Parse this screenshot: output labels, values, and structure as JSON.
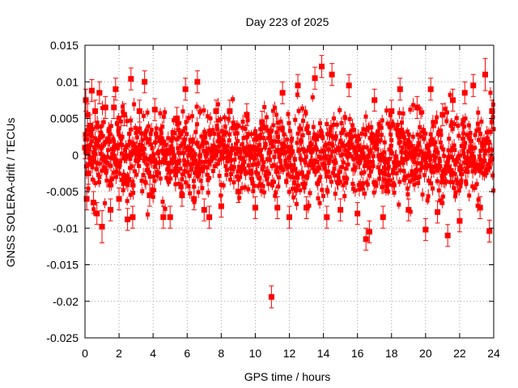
{
  "chart_data": {
    "type": "scatter",
    "title": "Day 223 of 2025",
    "xlabel": "GPS time / hours",
    "ylabel": "GNSS SOLERA-drift / TECUs",
    "xlim": [
      0,
      24
    ],
    "ylim": [
      -0.025,
      0.015
    ],
    "x_ticks": [
      0,
      2,
      4,
      6,
      8,
      10,
      12,
      14,
      16,
      18,
      20,
      22,
      24
    ],
    "x_tick_labels": [
      "0",
      "2",
      "4",
      "6",
      "8",
      "10",
      "12",
      "14",
      "16",
      "18",
      "20",
      "22",
      "24"
    ],
    "y_ticks": [
      -0.025,
      -0.02,
      -0.015,
      -0.01,
      -0.005,
      0,
      0.005,
      0.01,
      0.015
    ],
    "y_tick_labels": [
      "-0.025",
      "-0.02",
      "-0.015",
      "-0.01",
      "-0.005",
      "0",
      "0.005",
      "0.01",
      "0.015"
    ],
    "grid": true,
    "marker_color": "#ff0000",
    "error_bars": true,
    "series": [
      {
        "points": [
          {
            "x": 0.0,
            "y": 0.001,
            "err": 0.0015
          },
          {
            "x": 0.05,
            "y": 0.0075,
            "err": 0.0015
          },
          {
            "x": 0.1,
            "y": -0.006,
            "err": 0.0015
          },
          {
            "x": 0.15,
            "y": 0.0055,
            "err": 0.0015
          },
          {
            "x": 0.2,
            "y": -0.0025,
            "err": 0.0015
          },
          {
            "x": 0.3,
            "y": 0.004,
            "err": 0.0015
          },
          {
            "x": 0.4,
            "y": 0.0088,
            "err": 0.0015
          },
          {
            "x": 0.5,
            "y": -0.0065,
            "err": 0.0015
          },
          {
            "x": 0.6,
            "y": 0.006,
            "err": 0.0015
          },
          {
            "x": 0.7,
            "y": -0.008,
            "err": 0.0015
          },
          {
            "x": 0.85,
            "y": 0.0085,
            "err": 0.0015
          },
          {
            "x": 1.0,
            "y": -0.0098,
            "err": 0.0022
          },
          {
            "x": 1.2,
            "y": 0.0065,
            "err": 0.0015
          },
          {
            "x": 1.5,
            "y": -0.0075,
            "err": 0.0015
          },
          {
            "x": 1.7,
            "y": 0.0065,
            "err": 0.0015
          },
          {
            "x": 1.8,
            "y": 0.009,
            "err": 0.0015
          },
          {
            "x": 2.0,
            "y": -0.006,
            "err": 0.0015
          },
          {
            "x": 2.3,
            "y": 0.0055,
            "err": 0.0015
          },
          {
            "x": 2.5,
            "y": -0.0088,
            "err": 0.0015
          },
          {
            "x": 2.7,
            "y": 0.0104,
            "err": 0.0015
          },
          {
            "x": 2.8,
            "y": -0.0085,
            "err": 0.0015
          },
          {
            "x": 3.2,
            "y": 0.006,
            "err": 0.0015
          },
          {
            "x": 3.5,
            "y": 0.01,
            "err": 0.0015
          },
          {
            "x": 3.8,
            "y": -0.0055,
            "err": 0.0015
          },
          {
            "x": 4.1,
            "y": 0.0062,
            "err": 0.0015
          },
          {
            "x": 4.6,
            "y": -0.0085,
            "err": 0.0015
          },
          {
            "x": 5.0,
            "y": -0.0085,
            "err": 0.0015
          },
          {
            "x": 5.4,
            "y": 0.005,
            "err": 0.0015
          },
          {
            "x": 5.7,
            "y": -0.0055,
            "err": 0.0015
          },
          {
            "x": 5.9,
            "y": 0.009,
            "err": 0.0015
          },
          {
            "x": 6.4,
            "y": -0.006,
            "err": 0.0015
          },
          {
            "x": 6.6,
            "y": 0.01,
            "err": 0.0015
          },
          {
            "x": 7.0,
            "y": -0.0075,
            "err": 0.0015
          },
          {
            "x": 7.3,
            "y": -0.0085,
            "err": 0.0015
          },
          {
            "x": 7.7,
            "y": 0.006,
            "err": 0.0015
          },
          {
            "x": 8.0,
            "y": -0.007,
            "err": 0.0015
          },
          {
            "x": 8.5,
            "y": 0.006,
            "err": 0.0015
          },
          {
            "x": 9.0,
            "y": -0.005,
            "err": 0.0015
          },
          {
            "x": 9.5,
            "y": 0.0055,
            "err": 0.0015
          },
          {
            "x": 10.0,
            "y": -0.0072,
            "err": 0.0015
          },
          {
            "x": 10.4,
            "y": 0.0045,
            "err": 0.0015
          },
          {
            "x": 10.95,
            "y": -0.0194,
            "err": 0.0015
          },
          {
            "x": 11.3,
            "y": -0.0072,
            "err": 0.0015
          },
          {
            "x": 11.6,
            "y": 0.0085,
            "err": 0.0015
          },
          {
            "x": 12.0,
            "y": -0.0085,
            "err": 0.0015
          },
          {
            "x": 12.5,
            "y": 0.0095,
            "err": 0.0015
          },
          {
            "x": 13.0,
            "y": -0.0072,
            "err": 0.0015
          },
          {
            "x": 13.5,
            "y": 0.0105,
            "err": 0.0015
          },
          {
            "x": 13.9,
            "y": 0.0121,
            "err": 0.0015
          },
          {
            "x": 14.2,
            "y": -0.0085,
            "err": 0.0015
          },
          {
            "x": 14.5,
            "y": 0.011,
            "err": 0.0015
          },
          {
            "x": 15.0,
            "y": -0.0075,
            "err": 0.0015
          },
          {
            "x": 15.5,
            "y": 0.0095,
            "err": 0.0015
          },
          {
            "x": 16.0,
            "y": -0.008,
            "err": 0.0015
          },
          {
            "x": 16.5,
            "y": -0.0115,
            "err": 0.0015
          },
          {
            "x": 16.7,
            "y": -0.0105,
            "err": 0.0015
          },
          {
            "x": 17.0,
            "y": 0.0075,
            "err": 0.0015
          },
          {
            "x": 17.5,
            "y": -0.0085,
            "err": 0.0015
          },
          {
            "x": 18.0,
            "y": 0.006,
            "err": 0.0015
          },
          {
            "x": 18.5,
            "y": 0.009,
            "err": 0.0015
          },
          {
            "x": 19.0,
            "y": -0.0075,
            "err": 0.0015
          },
          {
            "x": 19.5,
            "y": 0.0065,
            "err": 0.0015
          },
          {
            "x": 20.0,
            "y": -0.0102,
            "err": 0.0015
          },
          {
            "x": 20.3,
            "y": 0.009,
            "err": 0.0015
          },
          {
            "x": 20.7,
            "y": -0.0078,
            "err": 0.0015
          },
          {
            "x": 21.0,
            "y": 0.0055,
            "err": 0.0015
          },
          {
            "x": 21.3,
            "y": -0.011,
            "err": 0.0015
          },
          {
            "x": 21.6,
            "y": 0.0075,
            "err": 0.0015
          },
          {
            "x": 22.0,
            "y": -0.009,
            "err": 0.0015
          },
          {
            "x": 22.3,
            "y": 0.0085,
            "err": 0.0015
          },
          {
            "x": 22.8,
            "y": 0.0095,
            "err": 0.0015
          },
          {
            "x": 23.2,
            "y": -0.0072,
            "err": 0.0015
          },
          {
            "x": 23.5,
            "y": 0.011,
            "err": 0.0022
          },
          {
            "x": 23.75,
            "y": -0.0104,
            "err": 0.0015
          },
          {
            "x": 23.9,
            "y": 0.006,
            "err": 0.0015
          }
        ]
      }
    ]
  }
}
